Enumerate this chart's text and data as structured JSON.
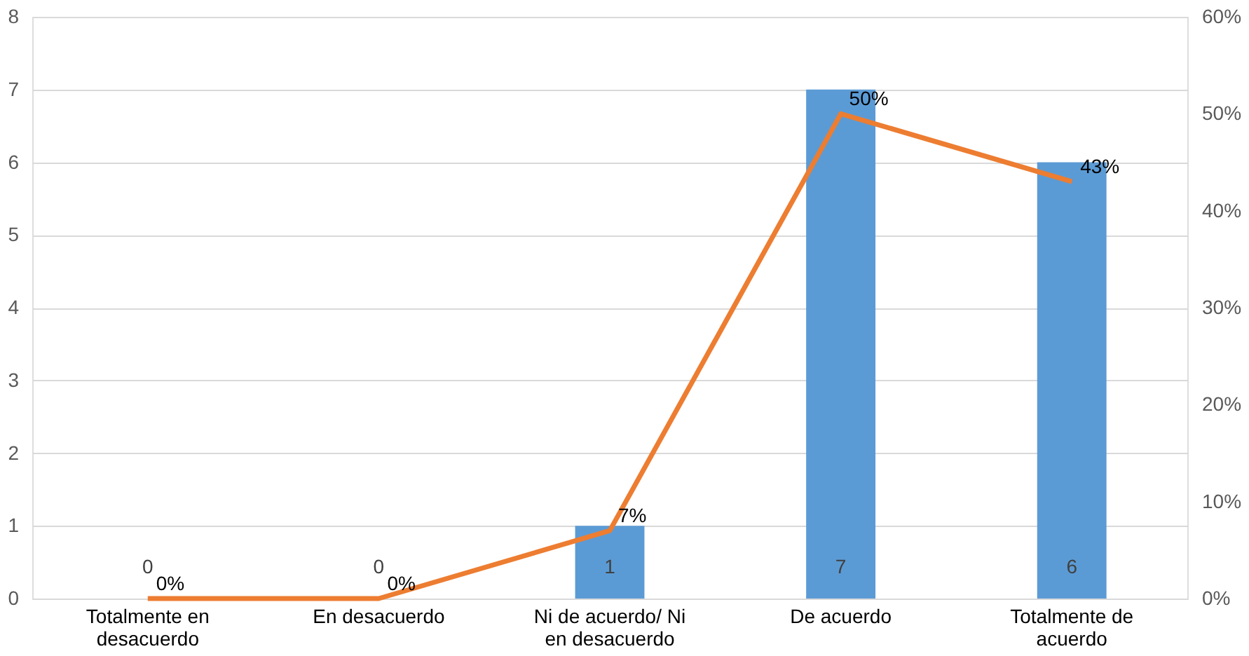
{
  "chart_data": {
    "type": "bar",
    "categories": [
      "Totalmente en desacuerdo",
      "En desacuerdo",
      "Ni de acuerdo/ Ni en desacuerdo",
      "De acuerdo",
      "Totalmente de acuerdo"
    ],
    "series": [
      {
        "color": "#5b9bd5",
        "values": [
          0,
          0,
          1,
          7,
          6
        ],
        "value_labels": [
          "0",
          "0",
          "1",
          "7",
          "6"
        ]
      },
      {
        "type": "line",
        "axis": "y2",
        "color": "#ed7d31",
        "values": [
          0,
          0,
          7,
          50,
          43
        ],
        "value_labels": [
          "0%",
          "0%",
          "7%",
          "50%",
          "43%"
        ]
      }
    ],
    "ylim": [
      0,
      8
    ],
    "yticks": [
      0,
      1,
      2,
      3,
      4,
      5,
      6,
      7,
      8
    ],
    "y2lim": [
      0,
      60
    ],
    "y2ticks": [
      {
        "value": 0,
        "label": "0%"
      },
      {
        "value": 10,
        "label": "10%"
      },
      {
        "value": 20,
        "label": "20%"
      },
      {
        "value": 30,
        "label": "30%"
      },
      {
        "value": 40,
        "label": "40%"
      },
      {
        "value": 50,
        "label": "50%"
      },
      {
        "value": 60,
        "label": "60%"
      }
    ],
    "grid": "y",
    "marker": "none",
    "line_style": "solid"
  }
}
